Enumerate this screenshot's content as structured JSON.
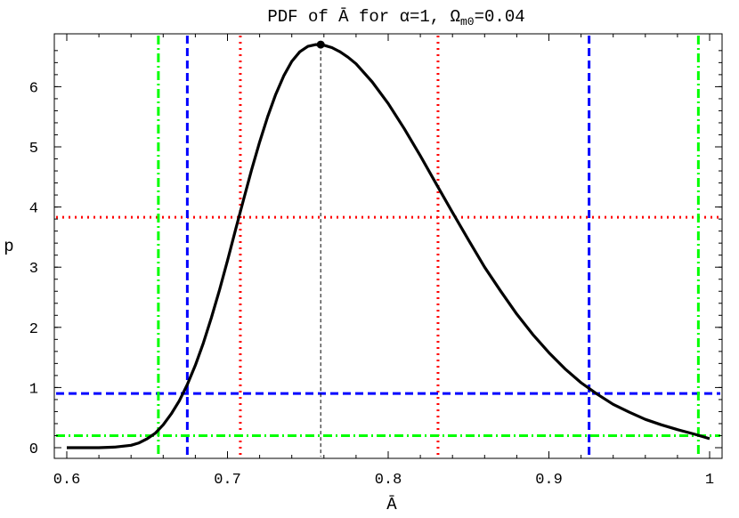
{
  "chart_data": {
    "type": "line",
    "title": "PDF of Ā for α=1, Ω",
    "title_sub": "m0",
    "title_tail": "=0.04",
    "xlabel": "Ā",
    "ylabel": "p",
    "xlim": [
      0.6,
      1.0
    ],
    "ylim": [
      -0.05,
      7.0
    ],
    "xticks": [
      0.6,
      0.7,
      0.8,
      0.9,
      1.0
    ],
    "xtick_labels": [
      "0.6",
      "0.7",
      "0.8",
      "0.9",
      "1"
    ],
    "yticks": [
      0,
      1,
      2,
      3,
      4,
      5,
      6
    ],
    "ytick_labels": [
      "0",
      "1",
      "2",
      "3",
      "4",
      "5",
      "6"
    ],
    "grid": false,
    "series": [
      {
        "color": "#000000",
        "x": [
          0.6,
          0.62,
          0.63,
          0.64,
          0.645,
          0.65,
          0.655,
          0.66,
          0.665,
          0.67,
          0.675,
          0.68,
          0.685,
          0.69,
          0.695,
          0.7,
          0.705,
          0.71,
          0.715,
          0.72,
          0.725,
          0.73,
          0.735,
          0.74,
          0.745,
          0.75,
          0.755,
          0.76,
          0.765,
          0.77,
          0.775,
          0.78,
          0.79,
          0.8,
          0.81,
          0.82,
          0.83,
          0.84,
          0.85,
          0.86,
          0.87,
          0.88,
          0.89,
          0.9,
          0.91,
          0.92,
          0.93,
          0.94,
          0.95,
          0.96,
          0.97,
          0.98,
          0.99,
          1.0
        ],
        "y": [
          0.0,
          0.0,
          0.01,
          0.04,
          0.08,
          0.15,
          0.24,
          0.38,
          0.56,
          0.78,
          1.05,
          1.37,
          1.74,
          2.16,
          2.62,
          3.11,
          3.62,
          4.12,
          4.62,
          5.08,
          5.5,
          5.87,
          6.18,
          6.42,
          6.58,
          6.67,
          6.7,
          6.69,
          6.65,
          6.58,
          6.49,
          6.38,
          6.08,
          5.72,
          5.3,
          4.85,
          4.38,
          3.91,
          3.45,
          3.0,
          2.6,
          2.22,
          1.88,
          1.58,
          1.31,
          1.08,
          0.89,
          0.72,
          0.59,
          0.47,
          0.38,
          0.3,
          0.23,
          0.15
        ]
      }
    ],
    "peak": {
      "x": 0.758,
      "y": 6.7
    },
    "intervals": [
      {
        "style": "dotted",
        "color": "#ff0000",
        "level": 3.83,
        "lo": 0.708,
        "hi": 0.831
      },
      {
        "style": "dashed",
        "color": "#0000ff",
        "level": 0.9,
        "lo": 0.675,
        "hi": 0.925
      },
      {
        "style": "dashdot",
        "color": "#00ff00",
        "level": 0.2,
        "lo": 0.657,
        "hi": 0.993
      }
    ]
  }
}
